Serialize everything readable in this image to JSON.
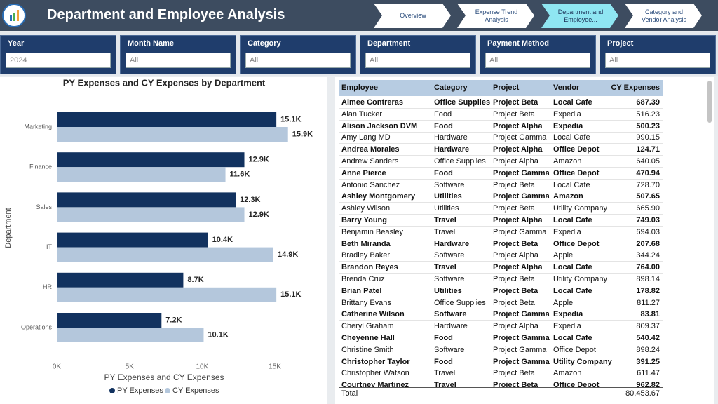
{
  "header": {
    "title": "Department and Employee Analysis"
  },
  "nav": {
    "items": [
      "Overview",
      "Expense Trend Analysis",
      "Department and Employee...",
      "Category and Vendor Analysis"
    ],
    "active": 2
  },
  "filters": [
    {
      "label": "Year",
      "value": "2024"
    },
    {
      "label": "Month Name",
      "value": "All"
    },
    {
      "label": "Category",
      "value": "All"
    },
    {
      "label": "Department",
      "value": "All"
    },
    {
      "label": "Payment Method",
      "value": "All"
    },
    {
      "label": "Project",
      "value": "All"
    }
  ],
  "chart_data": {
    "type": "bar",
    "orientation": "horizontal",
    "title": "PY Expenses and CY Expenses by Department",
    "x_label": "PY Expenses and CY Expenses",
    "y_label": "Department",
    "categories": [
      "Marketing",
      "Finance",
      "Sales",
      "IT",
      "HR",
      "Operations"
    ],
    "series": [
      {
        "name": "PY Expenses",
        "color": "#12325f",
        "values": [
          15100,
          12900,
          12300,
          10400,
          8700,
          7200
        ],
        "value_labels": [
          "15.1K",
          "12.9K",
          "12.3K",
          "10.4K",
          "8.7K",
          "7.2K"
        ]
      },
      {
        "name": "CY Expenses",
        "color": "#b4c7dc",
        "values": [
          15900,
          11600,
          12900,
          14900,
          15100,
          10100
        ],
        "value_labels": [
          "15.9K",
          "11.6K",
          "12.9K",
          "14.9K",
          "15.1K",
          "10.1K"
        ]
      }
    ],
    "xlim": [
      0,
      16000
    ],
    "xticks": [
      {
        "value": 0,
        "label": "0K"
      },
      {
        "value": 5000,
        "label": "5K"
      },
      {
        "value": 10000,
        "label": "10K"
      },
      {
        "value": 15000,
        "label": "15K"
      }
    ],
    "grid": false,
    "legend": "bottom"
  },
  "table": {
    "columns": [
      "Employee",
      "Category",
      "Project",
      "Vendor",
      "CY Expenses"
    ],
    "rows": [
      [
        "Aimee Contreras",
        "Office Supplies",
        "Project Beta",
        "Local Cafe",
        "687.39"
      ],
      [
        "Alan Tucker",
        "Food",
        "Project Beta",
        "Expedia",
        "516.23"
      ],
      [
        "Alison Jackson DVM",
        "Food",
        "Project Alpha",
        "Expedia",
        "500.23"
      ],
      [
        "Amy Lang MD",
        "Hardware",
        "Project Gamma",
        "Local Cafe",
        "990.15"
      ],
      [
        "Andrea Morales",
        "Hardware",
        "Project Alpha",
        "Office Depot",
        "124.71"
      ],
      [
        "Andrew Sanders",
        "Office Supplies",
        "Project Alpha",
        "Amazon",
        "640.05"
      ],
      [
        "Anne Pierce",
        "Food",
        "Project Gamma",
        "Office Depot",
        "470.94"
      ],
      [
        "Antonio Sanchez",
        "Software",
        "Project Beta",
        "Local Cafe",
        "728.70"
      ],
      [
        "Ashley Montgomery",
        "Utilities",
        "Project Gamma",
        "Amazon",
        "507.65"
      ],
      [
        "Ashley Wilson",
        "Utilities",
        "Project Beta",
        "Utility Company",
        "665.90"
      ],
      [
        "Barry Young",
        "Travel",
        "Project Alpha",
        "Local Cafe",
        "749.03"
      ],
      [
        "Benjamin Beasley",
        "Travel",
        "Project Gamma",
        "Expedia",
        "694.03"
      ],
      [
        "Beth Miranda",
        "Hardware",
        "Project Beta",
        "Office Depot",
        "207.68"
      ],
      [
        "Bradley Baker",
        "Software",
        "Project Alpha",
        "Apple",
        "344.24"
      ],
      [
        "Brandon Reyes",
        "Travel",
        "Project Alpha",
        "Local Cafe",
        "764.00"
      ],
      [
        "Brenda Cruz",
        "Software",
        "Project Beta",
        "Utility Company",
        "898.14"
      ],
      [
        "Brian Patel",
        "Utilities",
        "Project Beta",
        "Local Cafe",
        "178.82"
      ],
      [
        "Brittany Evans",
        "Office Supplies",
        "Project Beta",
        "Apple",
        "811.27"
      ],
      [
        "Catherine Wilson",
        "Software",
        "Project Gamma",
        "Expedia",
        "83.81"
      ],
      [
        "Cheryl Graham",
        "Hardware",
        "Project Alpha",
        "Expedia",
        "809.37"
      ],
      [
        "Cheyenne Hall",
        "Food",
        "Project Gamma",
        "Local Cafe",
        "540.42"
      ],
      [
        "Christine Smith",
        "Software",
        "Project Gamma",
        "Office Depot",
        "898.24"
      ],
      [
        "Christopher Taylor",
        "Food",
        "Project Gamma",
        "Utility Company",
        "391.25"
      ],
      [
        "Christopher Watson",
        "Travel",
        "Project Beta",
        "Amazon",
        "611.47"
      ],
      [
        "Courtney Martinez",
        "Travel",
        "Project Beta",
        "Office Depot",
        "962.82"
      ]
    ],
    "total": [
      "Total",
      "80,453.67"
    ]
  }
}
